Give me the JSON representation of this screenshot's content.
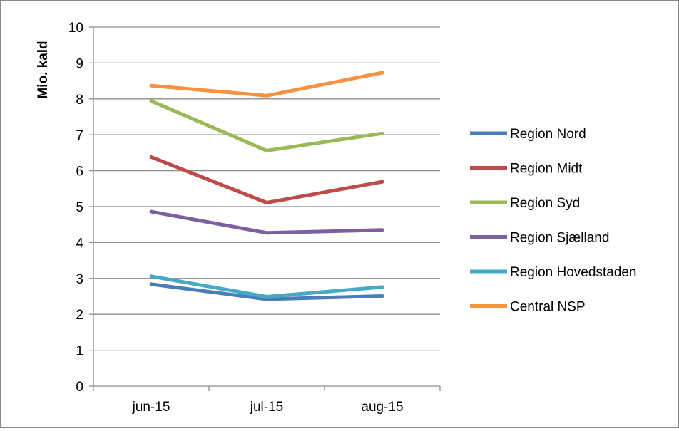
{
  "chart_data": {
    "type": "line",
    "title": "",
    "xlabel": "",
    "ylabel": "Mio. kald",
    "categories": [
      "jun-15",
      "jul-15",
      "aug-15"
    ],
    "ylim": [
      0,
      10
    ],
    "yticks": [
      0,
      1,
      2,
      3,
      4,
      5,
      6,
      7,
      8,
      9,
      10
    ],
    "grid": true,
    "legend_position": "right",
    "series": [
      {
        "name": "Region Nord",
        "color": "#4a7ebb",
        "values": [
          2.84,
          2.42,
          2.51
        ]
      },
      {
        "name": "Region Midt",
        "color": "#be4b48",
        "values": [
          6.38,
          5.11,
          5.69
        ]
      },
      {
        "name": "Region Syd",
        "color": "#98b954",
        "values": [
          7.94,
          6.56,
          7.04
        ]
      },
      {
        "name": "Region Sjælland",
        "color": "#7d60a0",
        "values": [
          4.86,
          4.27,
          4.35
        ]
      },
      {
        "name": "Region Hovedstaden",
        "color": "#46aac5",
        "values": [
          3.06,
          2.49,
          2.76
        ]
      },
      {
        "name": "Central NSP",
        "color": "#f69240",
        "values": [
          8.37,
          8.09,
          8.73
        ]
      }
    ]
  }
}
